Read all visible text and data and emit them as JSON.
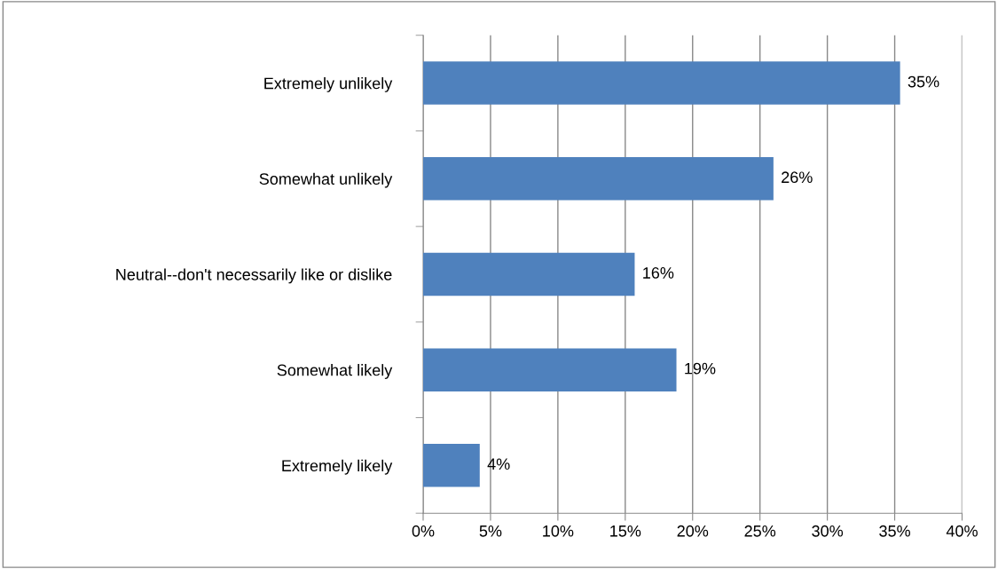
{
  "chart_data": {
    "type": "bar",
    "orientation": "horizontal",
    "categories": [
      "Extremely unlikely",
      "Somewhat unlikely",
      "Neutral--don't necessarily like or dislike",
      "Somewhat likely",
      "Extremely likely"
    ],
    "values": [
      35.4,
      26.0,
      15.7,
      18.8,
      4.2
    ],
    "value_labels": [
      "35%",
      "26%",
      "16%",
      "19%",
      "4%"
    ],
    "color": "#4f81bd",
    "xlim": [
      0,
      40
    ],
    "xticks": [
      {
        "value": 0,
        "label": "0%"
      },
      {
        "value": 5,
        "label": "5%"
      },
      {
        "value": 10,
        "label": "10%"
      },
      {
        "value": 15,
        "label": "15%"
      },
      {
        "value": 20,
        "label": "20%"
      },
      {
        "value": 25,
        "label": "25%"
      },
      {
        "value": 30,
        "label": "30%"
      },
      {
        "value": 35,
        "label": "35%"
      },
      {
        "value": 40,
        "label": "40%"
      }
    ],
    "grid": "x",
    "legend": false
  }
}
